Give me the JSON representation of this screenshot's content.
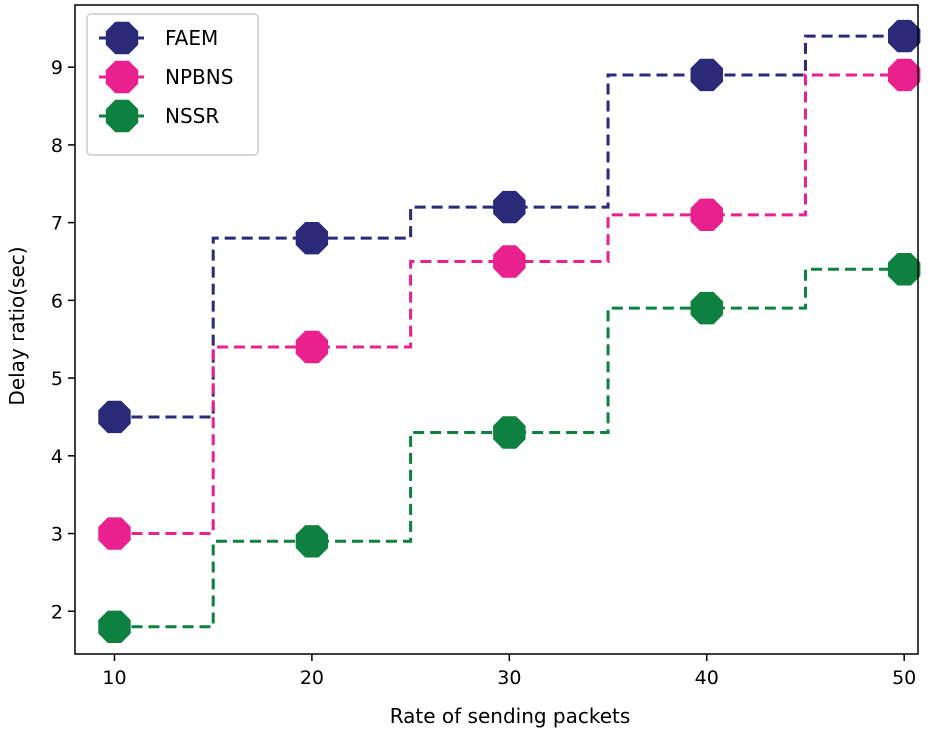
{
  "chart_data": {
    "type": "line",
    "style": "step-mid",
    "xlabel": "Rate of sending packets",
    "ylabel": "Delay ratio(sec)",
    "x": [
      10,
      20,
      30,
      40,
      50
    ],
    "xticks": [
      10,
      20,
      30,
      40,
      50
    ],
    "yticks": [
      2,
      3,
      4,
      5,
      6,
      7,
      8,
      9
    ],
    "xlim": [
      8,
      50.7
    ],
    "ylim": [
      1.45,
      9.8
    ],
    "legend_position": "top-left",
    "series": [
      {
        "name": "FAEM",
        "color": "#2b2a78",
        "values": [
          4.5,
          6.8,
          7.2,
          8.9,
          9.4
        ]
      },
      {
        "name": "NPBNS",
        "color": "#e8218f",
        "values": [
          3.0,
          5.4,
          6.5,
          7.1,
          8.9
        ]
      },
      {
        "name": "NSSR",
        "color": "#0e8040",
        "values": [
          1.8,
          2.9,
          4.3,
          5.9,
          6.4
        ]
      }
    ]
  }
}
